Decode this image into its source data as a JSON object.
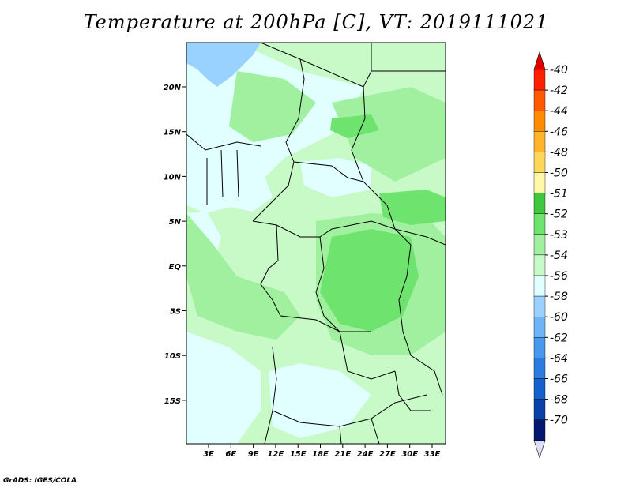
{
  "title": "Temperature at 200hPa [C], VT: 2019111021",
  "credit": "GrADS: IGES/COLA",
  "lon_ticks": [
    "3E",
    "6E",
    "9E",
    "12E",
    "15E",
    "18E",
    "21E",
    "24E",
    "27E",
    "30E",
    "33E"
  ],
  "lat_ticks": [
    "20N",
    "15N",
    "10N",
    "5N",
    "EQ",
    "5S",
    "10S",
    "15S"
  ],
  "colorbar": {
    "labels": [
      "-40",
      "-42",
      "-44",
      "-46",
      "-48",
      "-50",
      "-51",
      "-52",
      "-53",
      "-54",
      "-56",
      "-58",
      "-60",
      "-62",
      "-64",
      "-66",
      "-68",
      "-70"
    ],
    "colors": [
      "#ff2000",
      "#ff5a00",
      "#ff8c00",
      "#ffb42a",
      "#ffd65a",
      "#fff8a8",
      "#3ec83e",
      "#6ee46e",
      "#a0f0a0",
      "#c8fac8",
      "#e0fffe",
      "#9ad2ff",
      "#6fb4f6",
      "#4a98ee",
      "#2c7ce0",
      "#1560cc",
      "#0a40a8",
      "#041872"
    ],
    "top_arrow_color": "#e00000",
    "bottom_arrow_color": "#dcdcf8"
  }
}
